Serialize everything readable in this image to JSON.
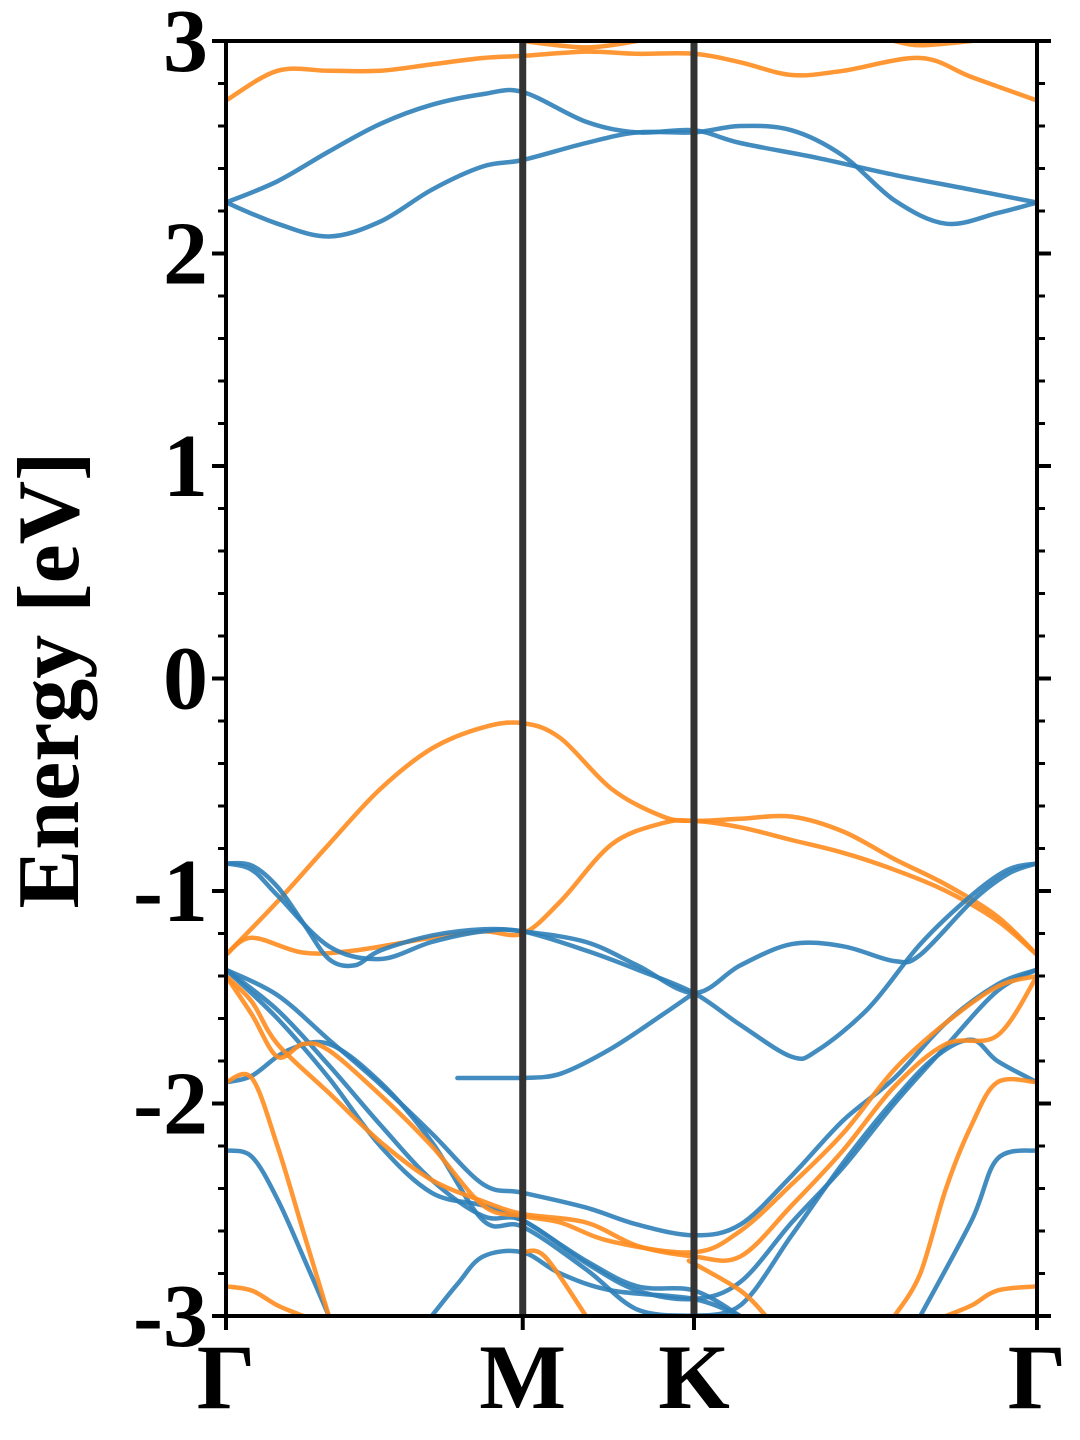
{
  "chart_data": {
    "type": "line",
    "title": "",
    "ylabel": "Energy [eV]",
    "xlabel": "",
    "ylim": [
      -3,
      3
    ],
    "x_ticks": [
      {
        "label": "Γ",
        "pos": 0.0
      },
      {
        "label": "M",
        "pos": 0.577
      },
      {
        "label": "K",
        "pos": 0.91
      },
      {
        "label": "Γ",
        "pos": 1.577
      }
    ],
    "y_ticks": [
      -3,
      -2,
      -1,
      0,
      1,
      2,
      3
    ],
    "y_tick_labels": [
      "-3",
      "-2",
      "-1",
      "0",
      "1",
      "2",
      "3"
    ],
    "vertical_lines_at": [
      0.577,
      0.91
    ],
    "colors": {
      "blue": "#2f7fb8",
      "orange": "#ff8c1f",
      "frame": "#000000",
      "kline": "#333333"
    },
    "series": [
      {
        "color": "blue",
        "points": [
          [
            0,
            2.24
          ],
          [
            0.1,
            2.34
          ],
          [
            0.2,
            2.48
          ],
          [
            0.3,
            2.61
          ],
          [
            0.4,
            2.7
          ],
          [
            0.5,
            2.75
          ],
          [
            0.577,
            2.76
          ],
          [
            0.7,
            2.62
          ],
          [
            0.8,
            2.57
          ],
          [
            0.91,
            2.58
          ],
          [
            1.0,
            2.52
          ],
          [
            1.15,
            2.45
          ],
          [
            1.3,
            2.37
          ],
          [
            1.45,
            2.3
          ],
          [
            1.577,
            2.24
          ]
        ]
      },
      {
        "color": "blue",
        "points": [
          [
            0,
            2.24
          ],
          [
            0.1,
            2.14
          ],
          [
            0.2,
            2.08
          ],
          [
            0.3,
            2.15
          ],
          [
            0.4,
            2.3
          ],
          [
            0.5,
            2.41
          ],
          [
            0.577,
            2.44
          ],
          [
            0.7,
            2.52
          ],
          [
            0.8,
            2.57
          ],
          [
            0.91,
            2.57
          ],
          [
            1.0,
            2.6
          ],
          [
            1.1,
            2.58
          ],
          [
            1.2,
            2.46
          ],
          [
            1.3,
            2.25
          ],
          [
            1.4,
            2.14
          ],
          [
            1.5,
            2.19
          ],
          [
            1.577,
            2.24
          ]
        ]
      },
      {
        "color": "orange",
        "points": [
          [
            0,
            2.72
          ],
          [
            0.1,
            2.86
          ],
          [
            0.2,
            2.86
          ],
          [
            0.3,
            2.86
          ],
          [
            0.4,
            2.89
          ],
          [
            0.5,
            2.92
          ],
          [
            0.577,
            2.93
          ],
          [
            0.7,
            2.95
          ],
          [
            0.8,
            2.94
          ],
          [
            0.91,
            2.94
          ],
          [
            1.0,
            2.9
          ],
          [
            1.1,
            2.84
          ],
          [
            1.2,
            2.86
          ],
          [
            1.35,
            2.92
          ],
          [
            1.45,
            2.83
          ],
          [
            1.577,
            2.72
          ]
        ]
      },
      {
        "color": "orange",
        "points": [
          [
            0.577,
            3.0
          ],
          [
            0.7,
            2.97
          ],
          [
            0.8,
            3.0
          ]
        ]
      },
      {
        "color": "orange",
        "points": [
          [
            1.3,
            3.0
          ],
          [
            1.35,
            2.98
          ],
          [
            1.45,
            3.0
          ]
        ]
      },
      {
        "color": "orange",
        "points": [
          [
            0,
            -1.3
          ],
          [
            0.1,
            -1.05
          ],
          [
            0.2,
            -0.78
          ],
          [
            0.3,
            -0.52
          ],
          [
            0.4,
            -0.33
          ],
          [
            0.5,
            -0.23
          ],
          [
            0.577,
            -0.21
          ],
          [
            0.65,
            -0.28
          ],
          [
            0.75,
            -0.52
          ],
          [
            0.85,
            -0.65
          ],
          [
            0.91,
            -0.67
          ],
          [
            1.0,
            -0.66
          ],
          [
            1.1,
            -0.65
          ],
          [
            1.2,
            -0.72
          ],
          [
            1.3,
            -0.85
          ],
          [
            1.4,
            -0.97
          ],
          [
            1.5,
            -1.12
          ],
          [
            1.577,
            -1.3
          ]
        ]
      },
      {
        "color": "orange",
        "points": [
          [
            0,
            -1.3
          ],
          [
            0.05,
            -1.22
          ],
          [
            0.15,
            -1.29
          ],
          [
            0.25,
            -1.28
          ],
          [
            0.4,
            -1.22
          ],
          [
            0.5,
            -1.19
          ],
          [
            0.577,
            -1.2
          ],
          [
            0.65,
            -1.05
          ],
          [
            0.75,
            -0.78
          ],
          [
            0.85,
            -0.68
          ],
          [
            0.91,
            -0.67
          ],
          [
            1.0,
            -0.7
          ],
          [
            1.1,
            -0.76
          ],
          [
            1.2,
            -0.82
          ],
          [
            1.3,
            -0.9
          ],
          [
            1.4,
            -1.0
          ],
          [
            1.5,
            -1.14
          ],
          [
            1.577,
            -1.3
          ]
        ]
      },
      {
        "color": "blue",
        "points": [
          [
            0,
            -0.87
          ],
          [
            0.05,
            -0.88
          ],
          [
            0.1,
            -0.98
          ],
          [
            0.15,
            -1.15
          ],
          [
            0.2,
            -1.32
          ],
          [
            0.25,
            -1.35
          ],
          [
            0.3,
            -1.28
          ],
          [
            0.4,
            -1.21
          ],
          [
            0.5,
            -1.18
          ],
          [
            0.577,
            -1.19
          ],
          [
            0.7,
            -1.24
          ],
          [
            0.8,
            -1.35
          ],
          [
            0.91,
            -1.48
          ],
          [
            1.0,
            -1.35
          ],
          [
            1.1,
            -1.25
          ],
          [
            1.2,
            -1.26
          ],
          [
            1.3,
            -1.33
          ],
          [
            1.35,
            -1.3
          ],
          [
            1.45,
            -1.05
          ],
          [
            1.52,
            -0.92
          ],
          [
            1.577,
            -0.87
          ]
        ]
      },
      {
        "color": "blue",
        "points": [
          [
            0,
            -0.87
          ],
          [
            0.05,
            -0.9
          ],
          [
            0.1,
            -1.02
          ],
          [
            0.2,
            -1.26
          ],
          [
            0.3,
            -1.32
          ],
          [
            0.4,
            -1.24
          ],
          [
            0.5,
            -1.19
          ],
          [
            0.577,
            -1.19
          ],
          [
            0.7,
            -1.28
          ],
          [
            0.8,
            -1.37
          ],
          [
            0.91,
            -1.48
          ],
          [
            1.0,
            -1.63
          ],
          [
            1.1,
            -1.78
          ],
          [
            1.15,
            -1.75
          ],
          [
            1.25,
            -1.55
          ],
          [
            1.35,
            -1.25
          ],
          [
            1.45,
            -1.02
          ],
          [
            1.52,
            -0.9
          ],
          [
            1.577,
            -0.87
          ]
        ]
      },
      {
        "color": "blue",
        "points": [
          [
            0.577,
            -1.88
          ],
          [
            0.65,
            -1.86
          ],
          [
            0.75,
            -1.74
          ],
          [
            0.85,
            -1.58
          ],
          [
            0.91,
            -1.48
          ]
        ]
      },
      {
        "color": "blue",
        "points": [
          [
            0.45,
            -1.88
          ],
          [
            0.5,
            -1.88
          ],
          [
            0.577,
            -1.88
          ]
        ]
      },
      {
        "color": "blue",
        "points": [
          [
            0,
            -1.37
          ],
          [
            0.1,
            -1.49
          ],
          [
            0.2,
            -1.7
          ],
          [
            0.3,
            -1.91
          ],
          [
            0.4,
            -2.14
          ],
          [
            0.5,
            -2.38
          ],
          [
            0.577,
            -2.42
          ],
          [
            0.7,
            -2.49
          ],
          [
            0.8,
            -2.57
          ],
          [
            0.91,
            -2.62
          ],
          [
            1.0,
            -2.57
          ],
          [
            1.1,
            -2.34
          ],
          [
            1.2,
            -2.08
          ],
          [
            1.3,
            -1.88
          ],
          [
            1.4,
            -1.62
          ],
          [
            1.5,
            -1.44
          ],
          [
            1.577,
            -1.37
          ]
        ]
      },
      {
        "color": "blue",
        "points": [
          [
            0,
            -1.37
          ],
          [
            0.1,
            -1.56
          ],
          [
            0.2,
            -1.82
          ],
          [
            0.3,
            -2.1
          ],
          [
            0.4,
            -2.36
          ],
          [
            0.5,
            -2.53
          ],
          [
            0.577,
            -2.55
          ],
          [
            0.7,
            -2.75
          ],
          [
            0.8,
            -2.88
          ],
          [
            0.91,
            -2.92
          ],
          [
            1.0,
            -2.84
          ],
          [
            1.1,
            -2.56
          ],
          [
            1.2,
            -2.3
          ],
          [
            1.3,
            -2.0
          ],
          [
            1.4,
            -1.73
          ],
          [
            1.5,
            -1.47
          ],
          [
            1.577,
            -1.37
          ]
        ]
      },
      {
        "color": "blue",
        "points": [
          [
            0,
            -1.37
          ],
          [
            0.1,
            -1.6
          ],
          [
            0.2,
            -1.88
          ],
          [
            0.3,
            -2.2
          ],
          [
            0.4,
            -2.42
          ],
          [
            0.5,
            -2.48
          ],
          [
            0.577,
            -2.55
          ],
          [
            0.7,
            -2.74
          ],
          [
            0.8,
            -2.86
          ],
          [
            0.91,
            -2.88
          ],
          [
            1.0,
            -3.0
          ]
        ]
      },
      {
        "color": "blue",
        "points": [
          [
            0,
            -1.9
          ],
          [
            0.05,
            -1.87
          ],
          [
            0.12,
            -1.75
          ],
          [
            0.2,
            -1.72
          ],
          [
            0.3,
            -1.9
          ],
          [
            0.4,
            -2.18
          ],
          [
            0.5,
            -2.55
          ],
          [
            0.577,
            -2.58
          ],
          [
            0.7,
            -2.78
          ],
          [
            0.8,
            -2.97
          ],
          [
            0.91,
            -3.0
          ]
        ]
      },
      {
        "color": "blue",
        "points": [
          [
            0.9,
            -3.0
          ],
          [
            1.0,
            -2.95
          ],
          [
            1.1,
            -2.62
          ],
          [
            1.2,
            -2.28
          ],
          [
            1.3,
            -1.98
          ],
          [
            1.38,
            -1.78
          ],
          [
            1.45,
            -1.7
          ],
          [
            1.5,
            -1.8
          ],
          [
            1.577,
            -1.9
          ]
        ]
      },
      {
        "color": "blue",
        "points": [
          [
            0,
            -2.22
          ],
          [
            0.05,
            -2.25
          ],
          [
            0.1,
            -2.45
          ],
          [
            0.15,
            -2.72
          ],
          [
            0.2,
            -3.0
          ]
        ]
      },
      {
        "color": "blue",
        "points": [
          [
            0.4,
            -3.0
          ],
          [
            0.45,
            -2.85
          ],
          [
            0.5,
            -2.72
          ],
          [
            0.577,
            -2.7
          ],
          [
            0.65,
            -2.8
          ],
          [
            0.75,
            -2.88
          ],
          [
            0.91,
            -2.92
          ],
          [
            1.0,
            -3.0
          ]
        ]
      },
      {
        "color": "blue",
        "points": [
          [
            1.35,
            -3.0
          ],
          [
            1.45,
            -2.55
          ],
          [
            1.5,
            -2.26
          ],
          [
            1.577,
            -2.22
          ]
        ]
      },
      {
        "color": "orange",
        "points": [
          [
            0,
            -1.4
          ],
          [
            0.05,
            -1.58
          ],
          [
            0.1,
            -1.78
          ],
          [
            0.15,
            -1.72
          ],
          [
            0.2,
            -1.75
          ],
          [
            0.3,
            -1.96
          ],
          [
            0.4,
            -2.2
          ],
          [
            0.5,
            -2.48
          ],
          [
            0.577,
            -2.53
          ],
          [
            0.65,
            -2.56
          ],
          [
            0.75,
            -2.65
          ],
          [
            0.91,
            -2.7
          ],
          [
            1.0,
            -2.6
          ],
          [
            1.1,
            -2.38
          ],
          [
            1.2,
            -2.14
          ],
          [
            1.3,
            -1.84
          ],
          [
            1.4,
            -1.62
          ],
          [
            1.5,
            -1.45
          ],
          [
            1.577,
            -1.4
          ]
        ]
      },
      {
        "color": "orange",
        "points": [
          [
            0,
            -1.4
          ],
          [
            0.05,
            -1.52
          ],
          [
            0.1,
            -1.72
          ],
          [
            0.2,
            -1.95
          ],
          [
            0.3,
            -2.18
          ],
          [
            0.4,
            -2.36
          ],
          [
            0.5,
            -2.46
          ],
          [
            0.577,
            -2.52
          ],
          [
            0.7,
            -2.56
          ],
          [
            0.8,
            -2.67
          ],
          [
            0.91,
            -2.72
          ],
          [
            1.0,
            -2.72
          ],
          [
            1.1,
            -2.48
          ],
          [
            1.2,
            -2.22
          ],
          [
            1.3,
            -1.92
          ],
          [
            1.4,
            -1.72
          ],
          [
            1.5,
            -1.68
          ],
          [
            1.577,
            -1.4
          ]
        ]
      },
      {
        "color": "orange",
        "points": [
          [
            0,
            -1.9
          ],
          [
            0.05,
            -1.88
          ],
          [
            0.1,
            -2.2
          ],
          [
            0.15,
            -2.6
          ],
          [
            0.2,
            -3.0
          ]
        ]
      },
      {
        "color": "orange",
        "points": [
          [
            1.577,
            -1.9
          ],
          [
            1.5,
            -1.9
          ],
          [
            1.45,
            -2.1
          ],
          [
            1.4,
            -2.4
          ],
          [
            1.35,
            -2.8
          ],
          [
            1.3,
            -3.0
          ]
        ]
      },
      {
        "color": "orange",
        "points": [
          [
            0,
            -2.86
          ],
          [
            0.05,
            -2.88
          ],
          [
            0.1,
            -2.95
          ],
          [
            0.15,
            -3.0
          ]
        ]
      },
      {
        "color": "orange",
        "points": [
          [
            0.577,
            -2.7
          ],
          [
            0.62,
            -2.72
          ],
          [
            0.7,
            -3.0
          ]
        ]
      },
      {
        "color": "orange",
        "points": [
          [
            1.577,
            -2.86
          ],
          [
            1.5,
            -2.88
          ],
          [
            1.45,
            -2.95
          ],
          [
            1.4,
            -3.0
          ]
        ]
      },
      {
        "color": "orange",
        "points": [
          [
            0.9,
            -2.74
          ],
          [
            1.0,
            -2.88
          ],
          [
            1.05,
            -3.0
          ]
        ]
      }
    ]
  }
}
